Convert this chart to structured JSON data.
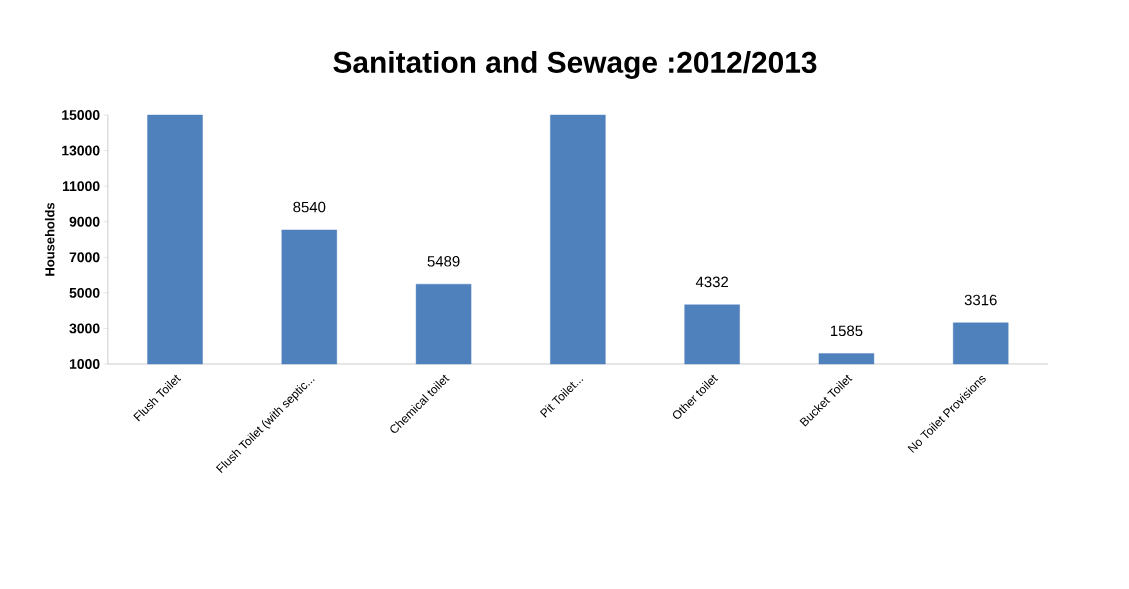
{
  "chart_data": {
    "type": "bar",
    "title": "Sanitation and Sewage :2012/2013",
    "ylabel": "Households",
    "categories": [
      "Flush Toilet",
      "Flush Toilet (with septic...",
      "Chemical toilet",
      "Pit Toilet...",
      "Other toilet",
      "Bucket Toilet",
      "No Toilet Provisions"
    ],
    "values": [
      15000,
      8540,
      5489,
      15000,
      4332,
      1585,
      3316
    ],
    "value_labels": [
      null,
      "8540",
      "5489",
      null,
      "4332",
      "1585",
      "3316"
    ],
    "color": "#4f81bd",
    "ylim": [
      1000,
      15000
    ],
    "yticks": [
      1000,
      3000,
      5000,
      7000,
      9000,
      11000,
      13000,
      15000
    ],
    "grid": false
  }
}
